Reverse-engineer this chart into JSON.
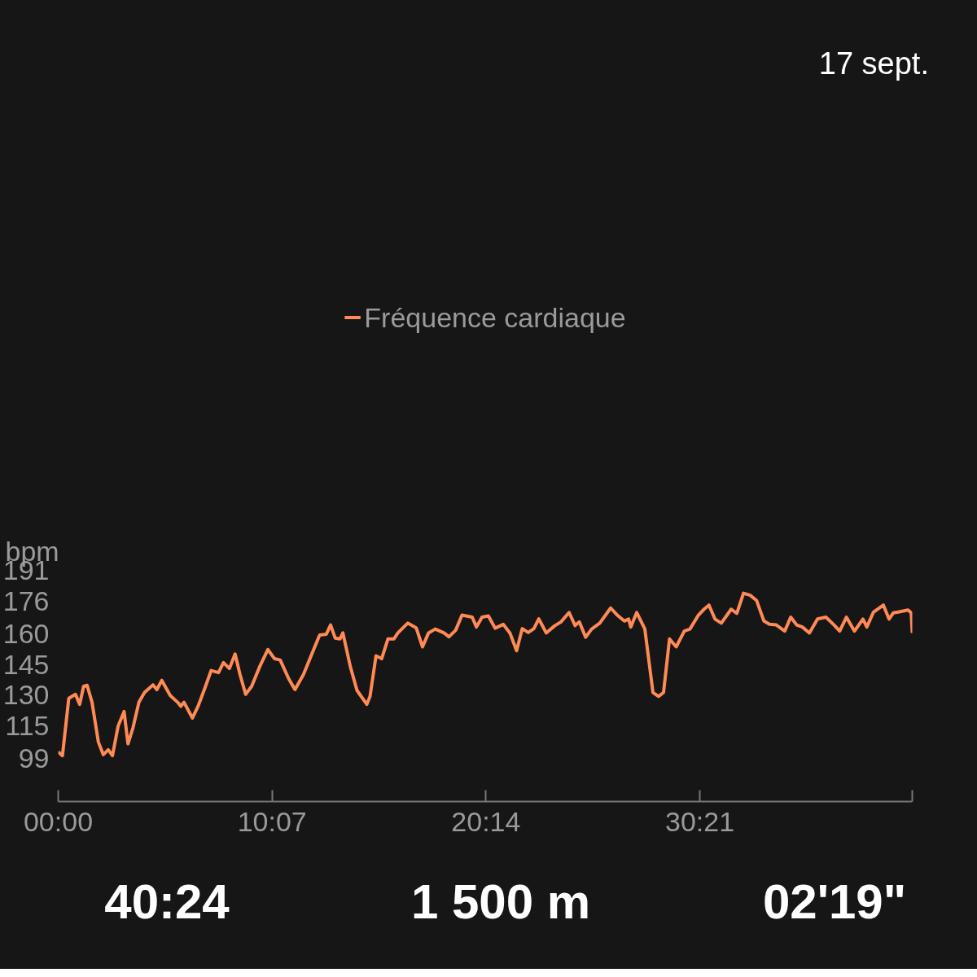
{
  "chart_data": {
    "type": "line",
    "subtitle": "17 sept.",
    "ylabel": "bpm",
    "x": [
      0,
      12,
      30,
      49,
      61,
      72,
      82,
      96,
      114,
      128,
      142,
      154,
      170,
      187,
      198,
      212,
      229,
      245,
      269,
      280,
      294,
      318,
      339,
      348,
      357,
      381,
      397,
      416,
      434,
      455,
      469,
      486,
      502,
      516,
      532,
      549,
      572,
      595,
      614,
      630,
      654,
      672,
      696,
      726,
      742,
      761,
      773,
      786,
      800,
      808,
      829,
      848,
      876,
      885,
      902,
      918,
      936,
      953,
      964,
      992,
      1016,
      1034,
      1051,
      1070,
      1095,
      1109,
      1128,
      1146,
      1175,
      1187,
      1203,
      1221,
      1240,
      1263,
      1282,
      1301,
      1317,
      1334,
      1350,
      1364,
      1385,
      1409,
      1427,
      1450,
      1467,
      1479,
      1497,
      1514,
      1537,
      1568,
      1588,
      1607,
      1619,
      1625,
      1642,
      1665,
      1688,
      1704,
      1718,
      1735,
      1754,
      1777,
      1793,
      1817,
      1833,
      1847,
      1864,
      1882,
      1910,
      1926,
      1945,
      1964,
      1982,
      2003,
      2019,
      2038,
      2062,
      2079,
      2096,
      2112,
      2132,
      2155,
      2179,
      2202,
      2218,
      2237,
      2260,
      2284,
      2295,
      2314,
      2342,
      2358,
      2370,
      2384,
      2412,
      2421,
      2424
    ],
    "series": [
      {
        "name": "Fréquence cardiaque",
        "color": "#ff8a55",
        "values": [
          102.3,
          100.4,
          128.4,
          130.4,
          125.5,
          134.3,
          134.8,
          126.5,
          107.1,
          100.9,
          103.3,
          100.4,
          114.9,
          122.0,
          106.2,
          113.9,
          126.5,
          131.3,
          135.0,
          132.7,
          137.2,
          129.8,
          126.5,
          124.6,
          126.5,
          118.8,
          124.6,
          133.3,
          142.0,
          141.0,
          145.9,
          143.0,
          150.1,
          140.1,
          130.4,
          134.3,
          144.0,
          152.3,
          147.8,
          147.2,
          138.1,
          132.7,
          140.1,
          152.7,
          159.4,
          159.8,
          164.3,
          157.9,
          157.5,
          160.4,
          144.0,
          132.3,
          125.5,
          129.4,
          149.2,
          147.8,
          157.5,
          157.5,
          160.4,
          165.2,
          162.9,
          153.6,
          160.4,
          162.3,
          160.4,
          158.5,
          161.7,
          169.1,
          168.1,
          163.3,
          168.1,
          168.7,
          162.7,
          164.6,
          160.4,
          151.7,
          162.5,
          160.6,
          162.5,
          167.3,
          160.4,
          163.9,
          165.8,
          170.4,
          164.0,
          165.8,
          158.3,
          162.3,
          165.2,
          172.6,
          168.9,
          166.2,
          167.2,
          163.3,
          170.4,
          162.3,
          131.3,
          129.4,
          131.3,
          157.5,
          153.6,
          161.3,
          162.3,
          169.1,
          172.0,
          174.0,
          167.2,
          165.2,
          172.0,
          170.0,
          179.8,
          178.8,
          176.3,
          166.2,
          164.6,
          164.3,
          161.3,
          168.1,
          164.3,
          163.3,
          160.4,
          167.2,
          168.1,
          164.3,
          161.3,
          168.1,
          161.3,
          167.2,
          163.3,
          170.6,
          174.0,
          167.2,
          170.2,
          170.6,
          171.6,
          170.2,
          160.4
        ]
      }
    ],
    "xlim": [
      0,
      2424
    ],
    "xticks": [
      {
        "value": 0,
        "label": "00:00"
      },
      {
        "value": 607,
        "label": "10:07"
      },
      {
        "value": 1214,
        "label": "20:14"
      },
      {
        "value": 1821,
        "label": "30:21"
      },
      {
        "value": 2424,
        "label": null
      }
    ],
    "ylim": [
      78,
      191
    ],
    "yticks": [
      99,
      115,
      130,
      145,
      160,
      176,
      191
    ],
    "grid": false,
    "legend": "top",
    "marker": "none",
    "line_style": "solid",
    "annotations": [
      "40:24",
      "1 500 m",
      "02'19\""
    ]
  }
}
